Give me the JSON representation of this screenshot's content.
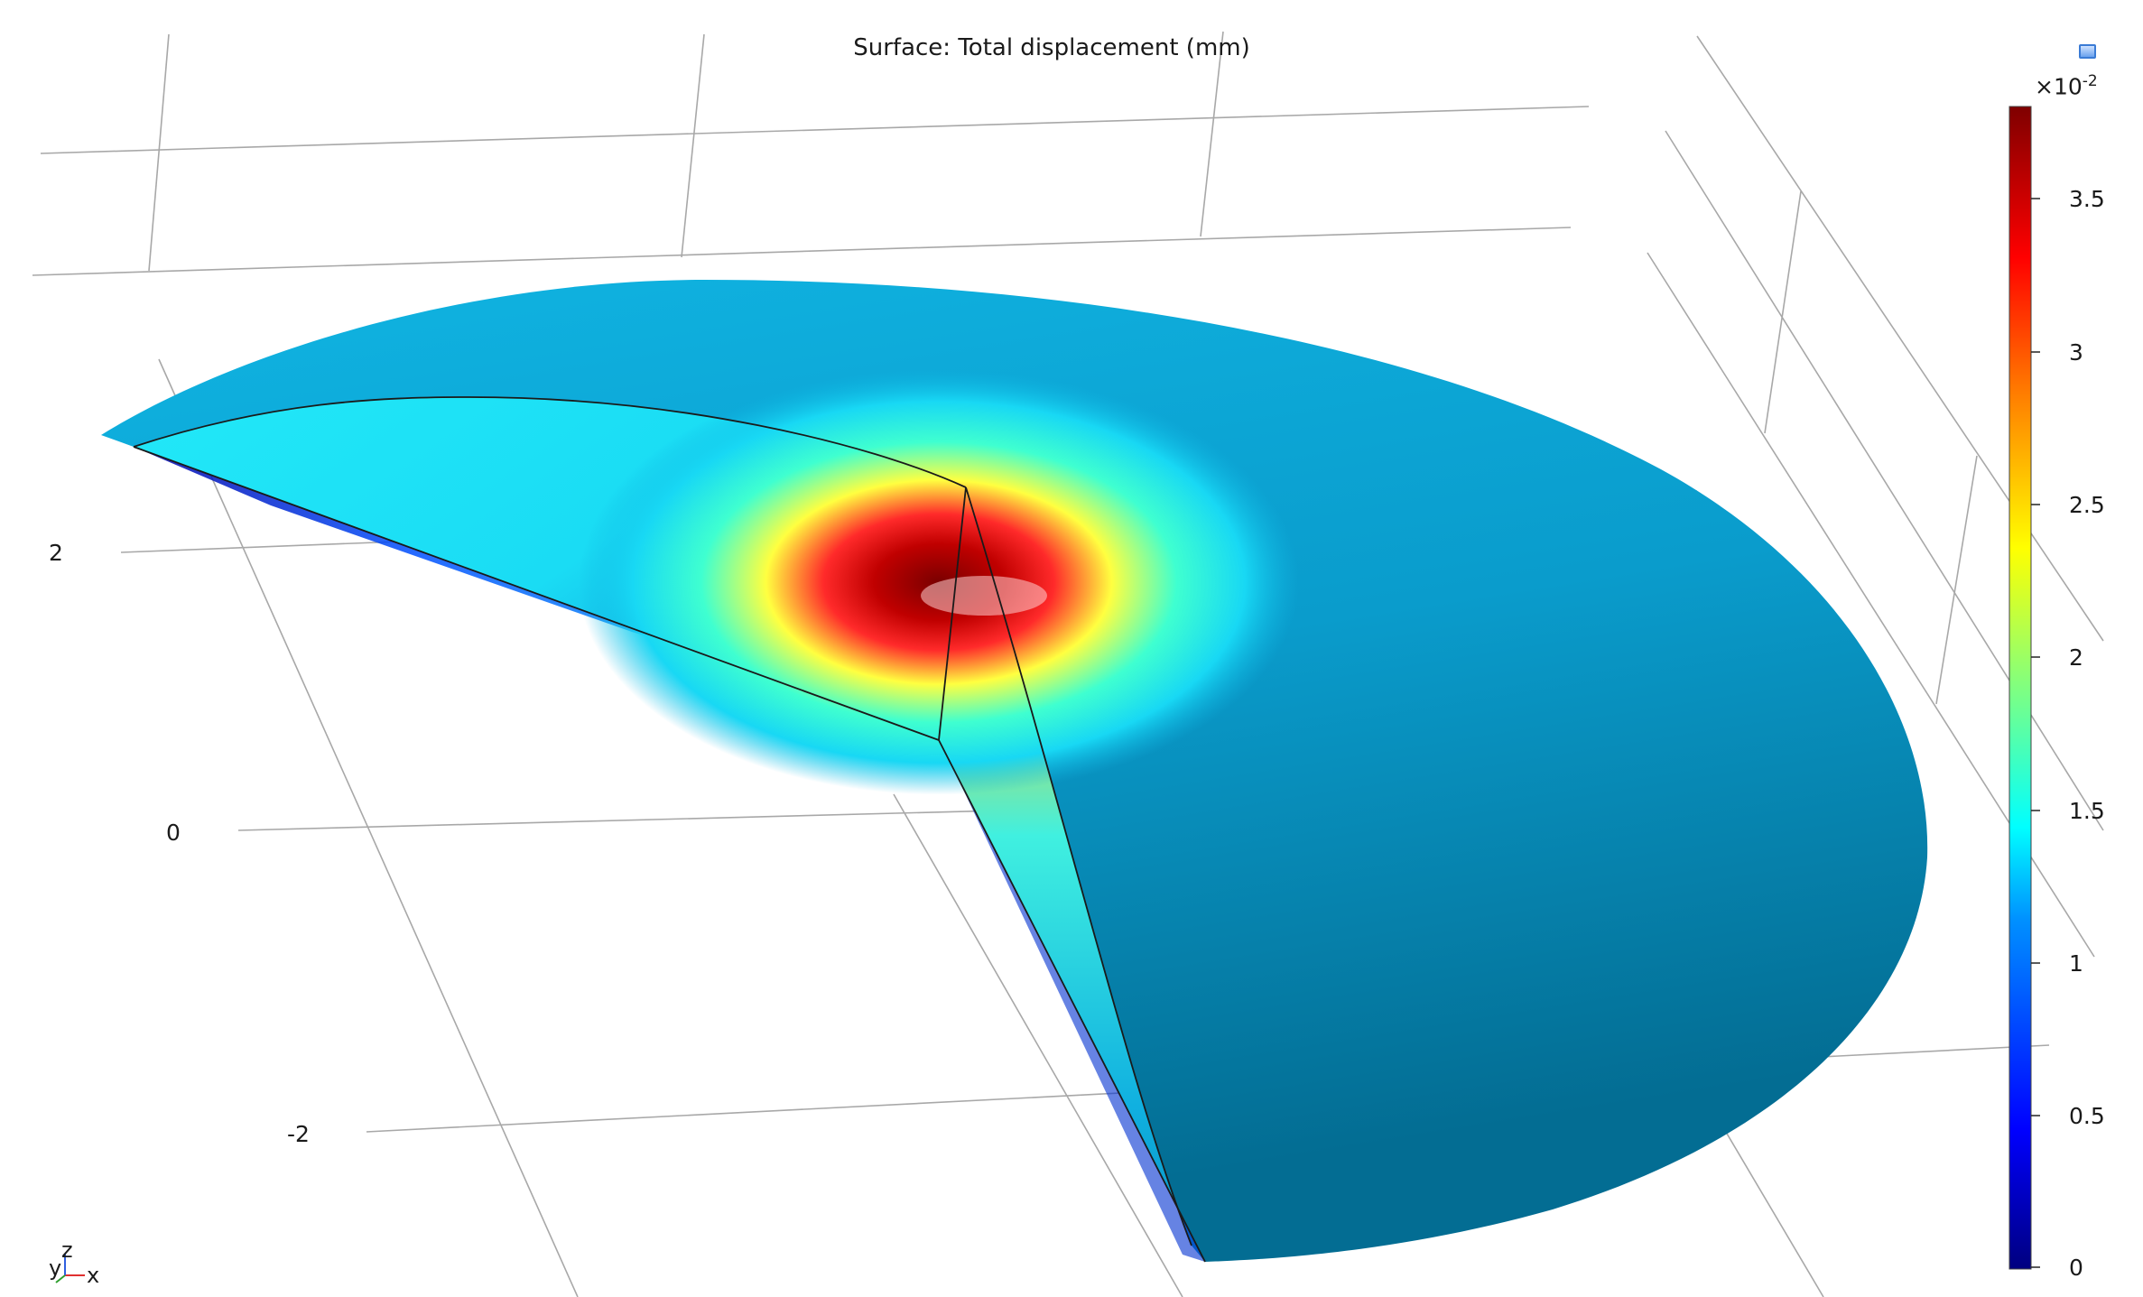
{
  "plot": {
    "title": "Surface: Total displacement (mm)",
    "axis_tick_labels": [
      "2",
      "0",
      "-2"
    ]
  },
  "colorbar": {
    "exponent_base": "×10",
    "exponent_power": "-2",
    "ticks": [
      "3.5",
      "3",
      "2.5",
      "2",
      "1.5",
      "1",
      "0.5",
      "0"
    ],
    "tick_values": [
      3.5,
      3,
      2.5,
      2,
      1.5,
      1,
      0.5,
      0
    ],
    "range": [
      0,
      3.8
    ],
    "colormap": [
      "#00007f",
      "#0000ff",
      "#00b0ff",
      "#00ffff",
      "#7fff7f",
      "#ffff00",
      "#ff7f00",
      "#ff0000",
      "#7f0000"
    ]
  },
  "axes_triad": {
    "labels": [
      "y",
      "z",
      "x"
    ]
  },
  "toolbar": {
    "icon": "plot-settings-icon"
  },
  "colors": {
    "grid": "#9a9a9a",
    "surface_base": "#0aa8d6",
    "surface_dark": "#036e92",
    "hotspot": "#a00000",
    "edge": "#1a1a1a"
  }
}
